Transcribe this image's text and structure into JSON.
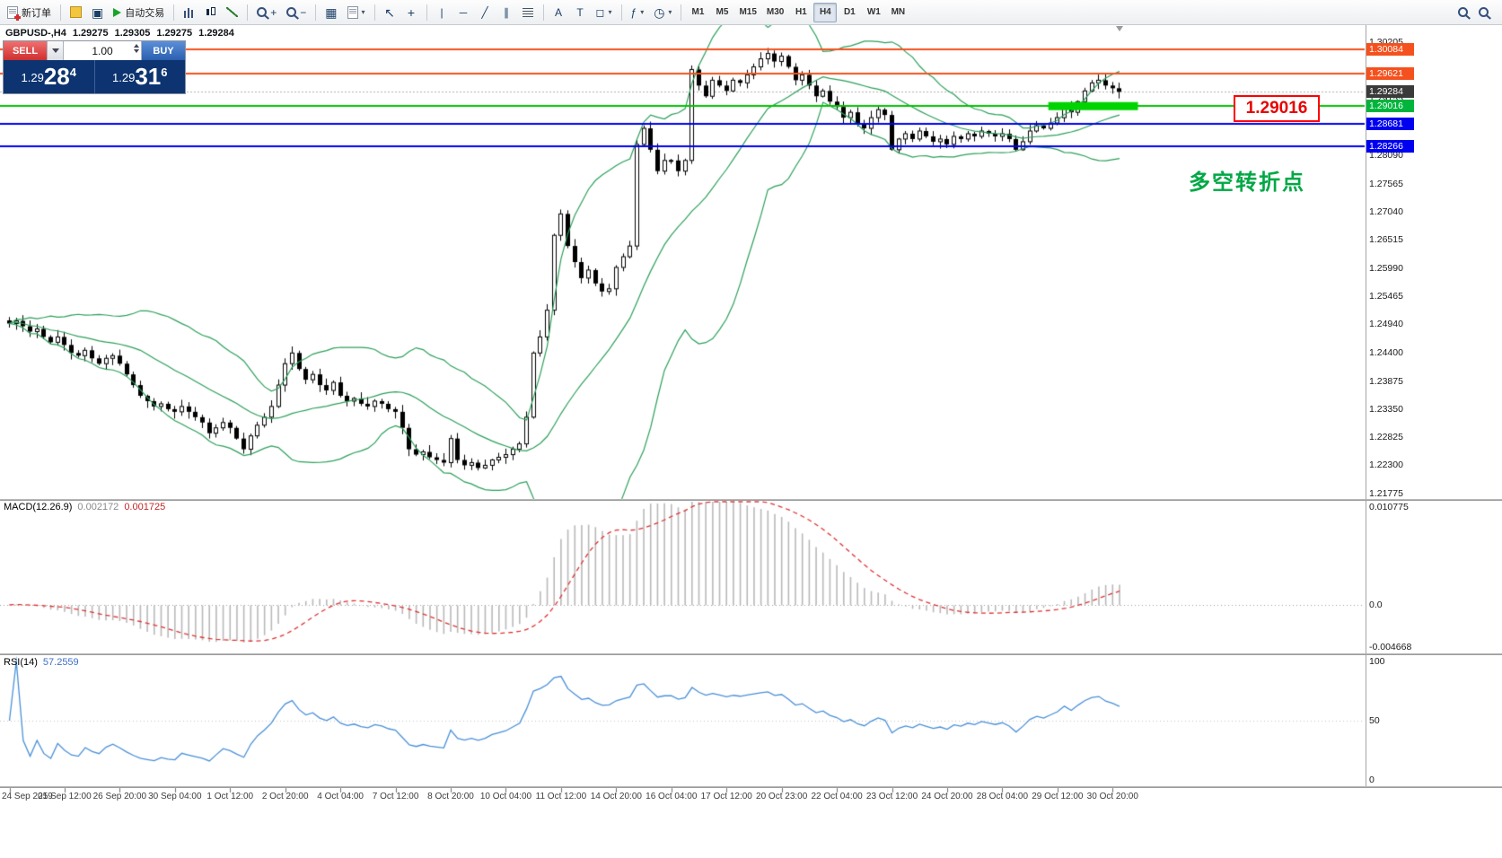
{
  "toolbar": {
    "new_order_label": "新订单",
    "autotrading_label": "自动交易",
    "timeframes": [
      "M1",
      "M5",
      "M15",
      "M30",
      "H1",
      "H4",
      "D1",
      "W1",
      "MN"
    ],
    "active_timeframe": "H4"
  },
  "icons": {
    "grid": "▦",
    "tile": "▣",
    "cursor": "↖",
    "crosshair": "+",
    "vline": "|",
    "hline": "─",
    "trendline": "╱",
    "channel": "∥",
    "shapes": "◻",
    "caret": "▾",
    "clock": "◷",
    "indicator": "ƒ",
    "plus": "+",
    "minus": "−",
    "text_tool": "A",
    "label_tool": "T"
  },
  "chart_header": {
    "symbol_period": "GBPUSD-,H4",
    "open": "1.29275",
    "high": "1.29305",
    "low": "1.29275",
    "close": "1.29284"
  },
  "trade_panel": {
    "sell_label": "SELL",
    "buy_label": "BUY",
    "volume": "1.00",
    "sell_price": {
      "head": "1.29",
      "big": "28",
      "sup": "4"
    },
    "buy_price": {
      "head": "1.29",
      "big": "31",
      "sup": "6"
    }
  },
  "annotations": {
    "level_callout": "1.29016",
    "turning_point": "多空转折点"
  },
  "price_axis": {
    "ticks": [
      "1.30205",
      "1.29680",
      "1.29155",
      "1.28630",
      "1.28090",
      "1.27565",
      "1.27040",
      "1.26515",
      "1.25990",
      "1.25465",
      "1.24940",
      "1.24400",
      "1.23875",
      "1.23350",
      "1.22825",
      "1.22300",
      "1.21775"
    ],
    "line_labels": [
      {
        "text": "1.30084",
        "color": "#f4511e"
      },
      {
        "text": "1.29621",
        "color": "#f4511e"
      },
      {
        "text": "1.29284",
        "color": "#3a3a3a"
      },
      {
        "text": "1.29016",
        "color": "#00b43c"
      },
      {
        "text": "1.28681",
        "color": "#0000f0"
      },
      {
        "text": "1.28266",
        "color": "#0000f0"
      }
    ]
  },
  "macd_panel": {
    "name": "MACD(12.26.9)",
    "value1": "0.002172",
    "value2": "0.001725",
    "axis": [
      "0.010775",
      "0.0",
      "-0.004668"
    ]
  },
  "rsi_panel": {
    "name": "RSI(14)",
    "value": "57.2559",
    "axis": [
      "100",
      "50",
      "0"
    ]
  },
  "time_axis": [
    "24 Sep 2019",
    "25 Sep 12:00",
    "26 Sep 20:00",
    "30 Sep 04:00",
    "1 Oct 12:00",
    "2 Oct 20:00",
    "4 Oct 04:00",
    "7 Oct 12:00",
    "8 Oct 20:00",
    "10 Oct 04:00",
    "11 Oct 12:00",
    "14 Oct 20:00",
    "16 Oct 04:00",
    "17 Oct 12:00",
    "20 Oct 23:00",
    "22 Oct 04:00",
    "23 Oct 12:00",
    "24 Oct 20:00",
    "28 Oct 04:00",
    "29 Oct 12:00",
    "30 Oct 20:00"
  ],
  "chart_data": {
    "type": "candlestick",
    "symbol": "GBPUSD-",
    "timeframe": "H4",
    "y_axis_range": [
      1.2167,
      1.3053
    ],
    "time_labels_every": 8,
    "closes": [
      1.2495,
      1.25,
      1.249,
      1.248,
      1.2485,
      1.247,
      1.246,
      1.247,
      1.2455,
      1.244,
      1.2435,
      1.2445,
      1.243,
      1.242,
      1.243,
      1.2435,
      1.242,
      1.24,
      1.238,
      1.236,
      1.235,
      1.234,
      1.2345,
      1.2335,
      1.233,
      1.234,
      1.233,
      1.232,
      1.231,
      1.229,
      1.23,
      1.231,
      1.23,
      1.228,
      1.226,
      1.2285,
      1.2305,
      1.232,
      1.234,
      1.238,
      1.242,
      1.244,
      1.241,
      1.239,
      1.24,
      1.238,
      1.237,
      1.2385,
      1.236,
      1.235,
      1.2355,
      1.2345,
      1.234,
      1.235,
      1.2345,
      1.2335,
      1.233,
      1.23,
      1.226,
      1.225,
      1.2255,
      1.2245,
      1.224,
      1.2235,
      1.228,
      1.224,
      1.223,
      1.2235,
      1.2225,
      1.223,
      1.224,
      1.2245,
      1.225,
      1.226,
      1.227,
      1.232,
      1.244,
      1.247,
      1.252,
      1.266,
      1.27,
      1.264,
      1.261,
      1.258,
      1.2595,
      1.257,
      1.2555,
      1.256,
      1.26,
      1.262,
      1.264,
      1.283,
      1.286,
      1.282,
      1.278,
      1.28,
      1.28,
      1.278,
      1.28,
      1.297,
      1.294,
      1.292,
      1.295,
      1.294,
      1.293,
      1.295,
      1.2945,
      1.296,
      1.2975,
      1.299,
      1.3,
      1.2985,
      1.2995,
      1.2975,
      1.295,
      1.296,
      1.294,
      1.292,
      1.293,
      1.291,
      1.29,
      1.288,
      1.289,
      1.287,
      1.286,
      1.288,
      1.2895,
      1.2885,
      1.282,
      1.284,
      1.285,
      1.284,
      1.2855,
      1.2845,
      1.2835,
      1.284,
      1.283,
      1.2845,
      1.284,
      1.285,
      1.2845,
      1.2855,
      1.285,
      1.2845,
      1.285,
      1.284,
      1.282,
      1.2835,
      1.2855,
      1.2865,
      1.286,
      1.287,
      1.288,
      1.29,
      1.289,
      1.291,
      1.293,
      1.2945,
      1.295,
      1.294,
      1.2935,
      1.29284
    ],
    "horizontal_lines": [
      {
        "price": 1.30084,
        "color": "#f4511e",
        "width": 2
      },
      {
        "price": 1.29621,
        "color": "#f4511e",
        "width": 2
      },
      {
        "price": 1.29284,
        "color": "#b0b0b0",
        "width": 1,
        "style": "current"
      },
      {
        "price": 1.29016,
        "color": "#00c300",
        "width": 2
      },
      {
        "price": 1.28681,
        "color": "#0000f0",
        "width": 2
      },
      {
        "price": 1.28266,
        "color": "#0000f0",
        "width": 2
      }
    ],
    "highlight_zone": {
      "price": 1.29016,
      "from_bar": 151,
      "to_bar": 164,
      "color": "#00d400",
      "thickness": 9
    },
    "indicators": {
      "bollinger": {
        "period": 20,
        "deviation": 2,
        "color": "#2ca05a"
      },
      "macd": {
        "fast": 12,
        "slow": 26,
        "signal": 9,
        "hist_color": "#b9b9b9",
        "signal_color": "#e03131",
        "range": [
          -0.004668,
          0.010775
        ]
      },
      "rsi": {
        "period": 14,
        "color": "#4a90d9",
        "level": 50
      }
    }
  }
}
